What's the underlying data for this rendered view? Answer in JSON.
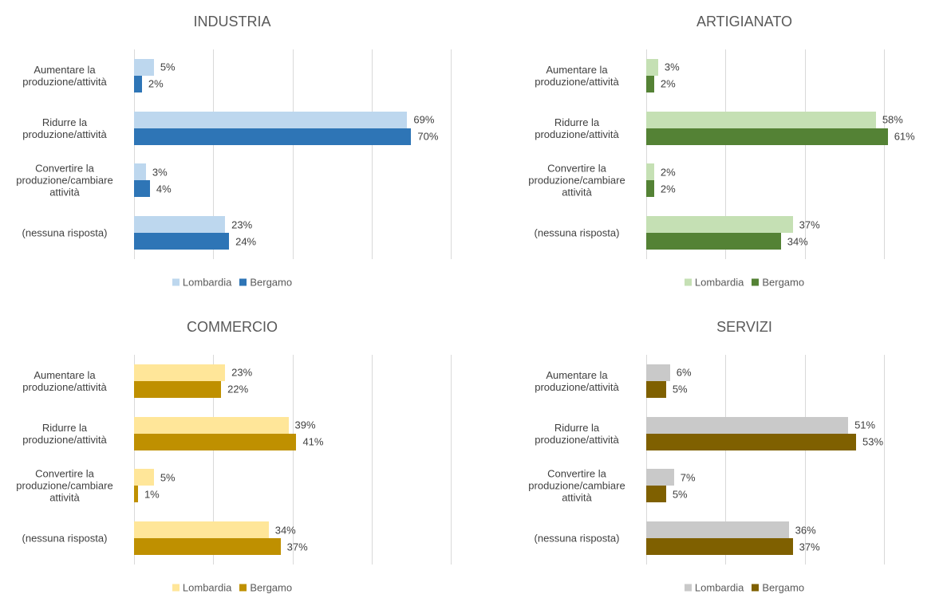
{
  "chart_data": [
    {
      "type": "bar",
      "orientation": "horizontal",
      "title": "INDUSTRIA",
      "categories": [
        "Aumentare la produzione/attività",
        "Ridurre la produzione/attività",
        "Convertire la produzione/cambiare attività",
        "(nessuna risposta)"
      ],
      "series": [
        {
          "name": "Lombardia",
          "color": "#bdd7ee",
          "values": [
            5,
            69,
            3,
            23
          ],
          "value_labels": [
            "5%",
            "69%",
            "3%",
            "23%"
          ]
        },
        {
          "name": "Bergamo",
          "color": "#2e75b6",
          "values": [
            2,
            70,
            4,
            24
          ],
          "value_labels": [
            "2%",
            "70%",
            "4%",
            "24%"
          ]
        }
      ],
      "xlim": [
        0,
        80
      ],
      "xticks": [
        0,
        20,
        40,
        60,
        80
      ],
      "grid": true,
      "legend": "bottom"
    },
    {
      "type": "bar",
      "orientation": "horizontal",
      "title": "ARTIGIANATO",
      "categories": [
        "Aumentare la produzione/attività",
        "Ridurre la produzione/attività",
        "Convertire la produzione/cambiare attività",
        "(nessuna risposta)"
      ],
      "series": [
        {
          "name": "Lombardia",
          "color": "#c5e0b4",
          "values": [
            3,
            58,
            2,
            37
          ],
          "value_labels": [
            "3%",
            "58%",
            "2%",
            "37%"
          ]
        },
        {
          "name": "Bergamo",
          "color": "#548235",
          "values": [
            2,
            61,
            2,
            34
          ],
          "value_labels": [
            "2%",
            "61%",
            "2%",
            "34%"
          ]
        }
      ],
      "xlim": [
        0,
        80
      ],
      "xticks": [
        0,
        20,
        40,
        60,
        80
      ],
      "grid": true,
      "legend": "bottom"
    },
    {
      "type": "bar",
      "orientation": "horizontal",
      "title": "COMMERCIO",
      "categories": [
        "Aumentare la produzione/attività",
        "Ridurre la produzione/attività",
        "Convertire la produzione/cambiare attività",
        "(nessuna risposta)"
      ],
      "series": [
        {
          "name": "Lombardia",
          "color": "#ffe699",
          "values": [
            23,
            39,
            5,
            34
          ],
          "value_labels": [
            "23%",
            "39%",
            "5%",
            "34%"
          ]
        },
        {
          "name": "Bergamo",
          "color": "#bf9000",
          "values": [
            22,
            41,
            1,
            37
          ],
          "value_labels": [
            "22%",
            "41%",
            "1%",
            "37%"
          ]
        }
      ],
      "xlim": [
        0,
        80
      ],
      "xticks": [
        0,
        20,
        40,
        60,
        80
      ],
      "grid": true,
      "legend": "bottom"
    },
    {
      "type": "bar",
      "orientation": "horizontal",
      "title": "SERVIZI",
      "categories": [
        "Aumentare la produzione/attività",
        "Ridurre la produzione/attività",
        "Convertire la produzione/cambiare attività",
        "(nessuna risposta)"
      ],
      "series": [
        {
          "name": "Lombardia",
          "color": "#c9c9c9",
          "values": [
            6,
            51,
            7,
            36
          ],
          "value_labels": [
            "6%",
            "51%",
            "7%",
            "36%"
          ]
        },
        {
          "name": "Bergamo",
          "color": "#7f6000",
          "values": [
            5,
            53,
            5,
            37
          ],
          "value_labels": [
            "5%",
            "53%",
            "5%",
            "37%"
          ]
        }
      ],
      "xlim": [
        0,
        80
      ],
      "xticks": [
        0,
        20,
        40,
        60,
        80
      ],
      "grid": true,
      "legend": "bottom"
    }
  ]
}
